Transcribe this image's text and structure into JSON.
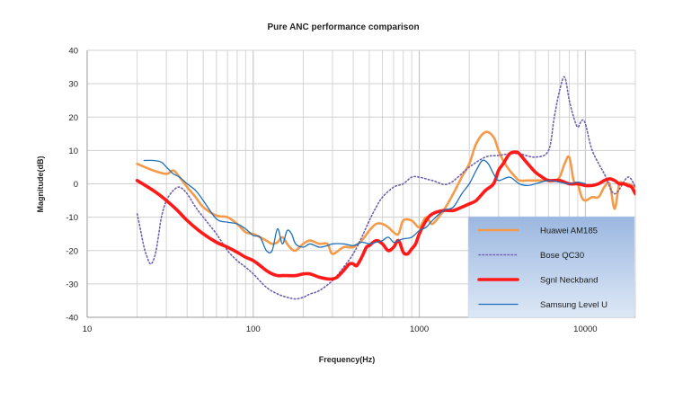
{
  "chart_data": {
    "type": "line",
    "title": "Pure ANC performance comparison",
    "xlabel": "Frequency(Hz)",
    "ylabel": "Magnitude(dB)",
    "x_scale": "log",
    "xlim": [
      10,
      20000
    ],
    "ylim": [
      -40,
      40
    ],
    "x_ticks": [
      10,
      100,
      1000,
      10000
    ],
    "y_ticks": [
      -40,
      -30,
      -20,
      -10,
      0,
      10,
      20,
      30,
      40
    ],
    "grid": true,
    "legend_position": "bottom-right",
    "series": [
      {
        "name": "Huawei AM185",
        "color": "#f59a4a",
        "style": "solid",
        "x": [
          20,
          25,
          30,
          33,
          36,
          40,
          45,
          50,
          60,
          70,
          80,
          90,
          100,
          110,
          120,
          130,
          140,
          150,
          160,
          170,
          180,
          200,
          220,
          250,
          280,
          300,
          350,
          400,
          450,
          500,
          550,
          600,
          650,
          700,
          750,
          800,
          900,
          1000,
          1100,
          1200,
          1400,
          1600,
          1800,
          2000,
          2200,
          2500,
          2800,
          3000,
          3200,
          3500,
          3800,
          4000,
          4500,
          5000,
          5500,
          6000,
          6500,
          7000,
          7500,
          8000,
          8500,
          9000,
          9500,
          10000,
          11000,
          12000,
          13000,
          14000,
          15000,
          16000,
          17000,
          18000,
          20000
        ],
        "y": [
          6,
          4,
          3,
          4,
          2,
          -1,
          -4,
          -7,
          -9.5,
          -10,
          -12,
          -14.5,
          -15,
          -16,
          -17,
          -18,
          -17.5,
          -16,
          -18,
          -19.5,
          -20,
          -18,
          -17,
          -18,
          -18,
          -21,
          -19,
          -19,
          -17,
          -14,
          -12,
          -12,
          -13,
          -14.5,
          -15,
          -11,
          -11,
          -13,
          -10,
          -12,
          -8,
          -3,
          2,
          6,
          12,
          15.5,
          14,
          10,
          7,
          4,
          2,
          1,
          1,
          1,
          1,
          1,
          1,
          2,
          6,
          8,
          1,
          0,
          -4,
          -5,
          -4,
          -4,
          -1,
          0,
          -7.5,
          0,
          0,
          0,
          -1
        ]
      },
      {
        "name": "Bose QC30",
        "color": "#7060b0",
        "style": "dotted",
        "x": [
          20,
          21,
          22,
          23,
          24,
          25,
          26,
          27,
          28,
          30,
          33,
          36,
          40,
          45,
          50,
          60,
          70,
          80,
          90,
          100,
          120,
          140,
          160,
          180,
          200,
          220,
          250,
          300,
          350,
          400,
          450,
          500,
          550,
          600,
          700,
          800,
          900,
          1000,
          1200,
          1500,
          2000,
          2500,
          3000,
          3500,
          4000,
          5000,
          6000,
          6500,
          7000,
          7500,
          8000,
          8500,
          9000,
          9500,
          10000,
          11000,
          13000,
          15000,
          18000,
          20000
        ],
        "y": [
          -9,
          -14,
          -19,
          -22,
          -24,
          -23,
          -20,
          -15,
          -10,
          -5,
          -2,
          -1,
          -3,
          -7,
          -10,
          -15,
          -20,
          -23,
          -25,
          -27,
          -31,
          -33,
          -34,
          -34.5,
          -34,
          -33,
          -32,
          -29,
          -25,
          -21,
          -16,
          -11,
          -7,
          -4,
          -1,
          0,
          2,
          2,
          1,
          0,
          5,
          8,
          8.5,
          9,
          9,
          8,
          10,
          20,
          28,
          32,
          25,
          20,
          17,
          19,
          18,
          10,
          3,
          -3,
          2,
          -1
        ]
      },
      {
        "name": "Sgnl Neckband",
        "color": "#ff1a1a",
        "style": "thick",
        "x": [
          20,
          25,
          30,
          35,
          40,
          50,
          60,
          70,
          80,
          90,
          100,
          110,
          120,
          130,
          140,
          150,
          160,
          180,
          200,
          220,
          250,
          280,
          300,
          320,
          350,
          380,
          400,
          420,
          450,
          480,
          500,
          550,
          600,
          650,
          700,
          750,
          800,
          850,
          900,
          950,
          1000,
          1100,
          1200,
          1400,
          1600,
          1800,
          2000,
          2200,
          2500,
          2800,
          3000,
          3200,
          3500,
          3800,
          4000,
          4500,
          5000,
          5500,
          6000,
          7000,
          8000,
          9000,
          10000,
          11000,
          12000,
          13000,
          14000,
          15000,
          16000,
          17000,
          18000,
          19000,
          20000
        ],
        "y": [
          1,
          -2,
          -5,
          -8,
          -11,
          -15,
          -17.5,
          -19,
          -20.5,
          -22,
          -23,
          -24.5,
          -26,
          -27,
          -27.5,
          -27.5,
          -27.5,
          -27.5,
          -27,
          -27,
          -28,
          -28.5,
          -28.5,
          -28,
          -26,
          -24,
          -24,
          -24.5,
          -22,
          -19,
          -18.5,
          -17,
          -18,
          -20,
          -19,
          -17,
          -20.5,
          -21,
          -19.5,
          -18,
          -15,
          -11,
          -9,
          -8,
          -8,
          -7,
          -6,
          -5,
          -2,
          0,
          4,
          6,
          9,
          9.5,
          9,
          6,
          3.5,
          2,
          1,
          1,
          0,
          0,
          -0.5,
          -0.5,
          0,
          1,
          1.5,
          1,
          0,
          0,
          -0.5,
          -1,
          -3
        ]
      },
      {
        "name": "Samsung Level U",
        "color": "#1f6fb8",
        "style": "solid",
        "x": [
          22,
          25,
          28,
          30,
          33,
          36,
          40,
          45,
          50,
          60,
          70,
          80,
          90,
          100,
          110,
          120,
          130,
          140,
          150,
          160,
          170,
          180,
          200,
          220,
          250,
          280,
          300,
          350,
          400,
          450,
          500,
          550,
          600,
          650,
          700,
          750,
          800,
          900,
          1000,
          1100,
          1200,
          1400,
          1600,
          1800,
          2000,
          2200,
          2400,
          2600,
          2800,
          3000,
          3500,
          4000,
          4500,
          5000,
          6000,
          7000,
          8000,
          9000,
          10000
        ],
        "y": [
          7,
          7,
          6.5,
          5,
          3,
          2,
          0,
          -2,
          -5,
          -10.5,
          -11.5,
          -12,
          -13.5,
          -15.5,
          -16,
          -20,
          -20,
          -13.5,
          -18,
          -14,
          -15,
          -18,
          -19,
          -18,
          -19,
          -18.5,
          -18,
          -18,
          -18.5,
          -17.5,
          -18,
          -17.5,
          -17,
          -16,
          -17.5,
          -17,
          -16.5,
          -16,
          -14,
          -13,
          -11,
          -8,
          -7,
          -3,
          0,
          4,
          7,
          6,
          3,
          1,
          2,
          0,
          -0.5,
          0,
          1,
          0.5,
          0,
          0.5,
          0
        ]
      }
    ]
  }
}
